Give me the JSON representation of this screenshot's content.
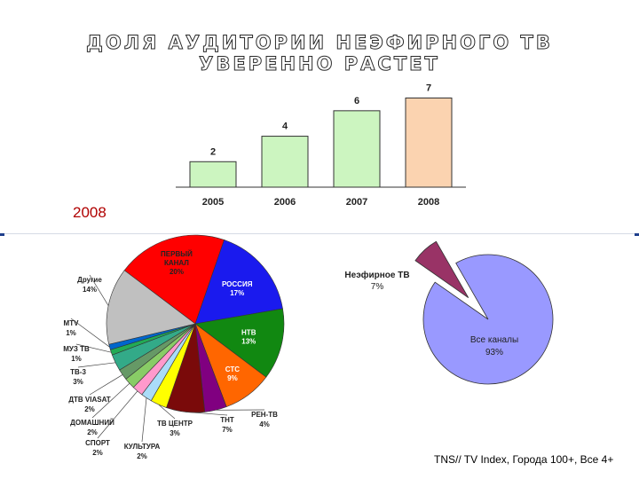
{
  "title_line1": "ДОЛЯ АУДИТОРИИ НЕЭФИРНОГО ТВ",
  "title_line2": "УВЕРЕННО РАСТЕТ",
  "year_label": "2008",
  "source": "TNS// TV Index, Города 100+, Все 4+",
  "chart_data": [
    {
      "type": "bar",
      "categories": [
        "2005",
        "2006",
        "2007",
        "2008"
      ],
      "values": [
        2,
        4,
        6,
        7
      ],
      "bar_colors": [
        "#ccf5c0",
        "#ccf5c0",
        "#ccf5c0",
        "#fbd3b0"
      ],
      "ylim": [
        0,
        7.8
      ],
      "grid": false
    },
    {
      "type": "pie",
      "slices": [
        {
          "label": "ПЕРВЫЙ КАНАЛ",
          "value": 20,
          "color": "#ff0000",
          "label_text_color": "#222222",
          "value_text": "20%"
        },
        {
          "label": "РОССИЯ",
          "value": 17,
          "color": "#1a1aee",
          "label_text_color": "#ffffff",
          "value_text": "17%"
        },
        {
          "label": "НТВ",
          "value": 13,
          "color": "#118811",
          "label_text_color": "#ffffff",
          "value_text": "13%"
        },
        {
          "label": "СТС",
          "value": 9,
          "color": "#ff6600",
          "label_text_color": "#ffffff",
          "value_text": "9%"
        },
        {
          "label": "РЕН-ТВ",
          "value": 4,
          "color": "#800080",
          "label_text_color": "#222222",
          "value_text": "4%"
        },
        {
          "label": "ТНТ",
          "value": 7,
          "color": "#7a0a0a",
          "label_text_color": "#222222",
          "value_text": "7%"
        },
        {
          "label": "ТВ ЦЕНТР",
          "value": 3,
          "color": "#ffff00",
          "label_text_color": "#222222",
          "value_text": "3%"
        },
        {
          "label": "КУЛЬТУРА",
          "value": 2,
          "color": "#aadcf8",
          "label_text_color": "#222222",
          "value_text": "2%"
        },
        {
          "label": "СПОРТ",
          "value": 2,
          "color": "#ff99cc",
          "label_text_color": "#222222",
          "value_text": "2%"
        },
        {
          "label": "ДОМАШНИЙ",
          "value": 2,
          "color": "#88cc66",
          "label_text_color": "#222222",
          "value_text": "2%"
        },
        {
          "label": "ДТВ VIASAT",
          "value": 2,
          "color": "#669966",
          "label_text_color": "#222222",
          "value_text": "2%"
        },
        {
          "label": "ТВ-3",
          "value": 3,
          "color": "#33aa88",
          "label_text_color": "#222222",
          "value_text": "3%"
        },
        {
          "label": "МУЗ ТВ",
          "value": 1,
          "color": "#22aa55",
          "label_text_color": "#222222",
          "value_text": "1%"
        },
        {
          "label": "MTV",
          "value": 1,
          "color": "#0066cc",
          "label_text_color": "#222222",
          "value_text": "1%"
        },
        {
          "label": "Другие",
          "value": 14,
          "color": "#c0c0c0",
          "label_text_color": "#222222",
          "value_text": "14%"
        }
      ]
    },
    {
      "type": "pie",
      "slices": [
        {
          "label": "Неэфирное ТВ",
          "value": 7,
          "color": "#993366",
          "value_text": "7%",
          "exploded": true
        },
        {
          "label": "Все каналы",
          "value": 93,
          "color": "#9999ff",
          "value_text": "93%"
        }
      ]
    }
  ]
}
